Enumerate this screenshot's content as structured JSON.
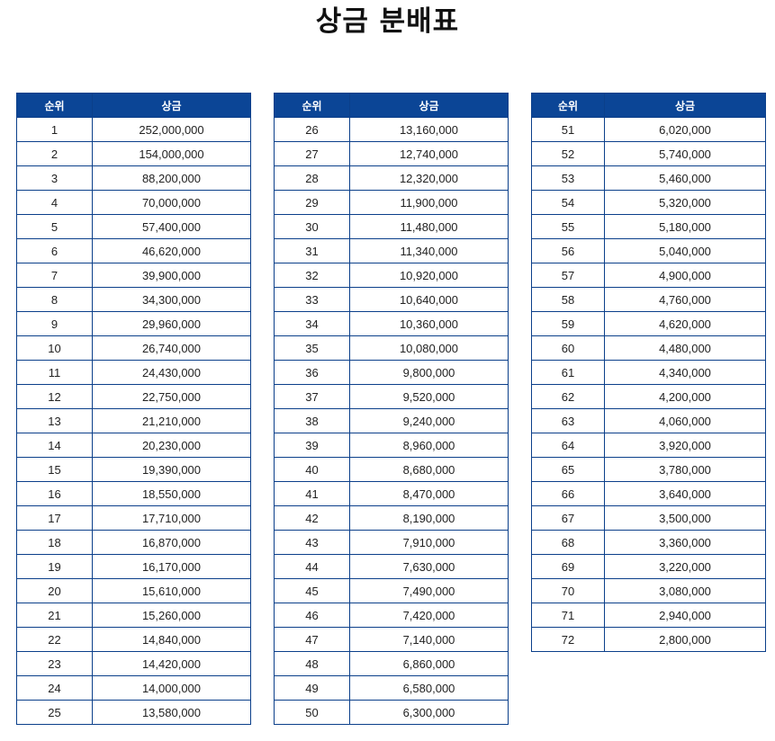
{
  "title": "상금 분배표",
  "columns": {
    "rank": "순위",
    "prize": "상금"
  },
  "tables": [
    {
      "rows": [
        {
          "rank": "1",
          "prize": "252,000,000"
        },
        {
          "rank": "2",
          "prize": "154,000,000"
        },
        {
          "rank": "3",
          "prize": "88,200,000"
        },
        {
          "rank": "4",
          "prize": "70,000,000"
        },
        {
          "rank": "5",
          "prize": "57,400,000"
        },
        {
          "rank": "6",
          "prize": "46,620,000"
        },
        {
          "rank": "7",
          "prize": "39,900,000"
        },
        {
          "rank": "8",
          "prize": "34,300,000"
        },
        {
          "rank": "9",
          "prize": "29,960,000"
        },
        {
          "rank": "10",
          "prize": "26,740,000"
        },
        {
          "rank": "11",
          "prize": "24,430,000"
        },
        {
          "rank": "12",
          "prize": "22,750,000"
        },
        {
          "rank": "13",
          "prize": "21,210,000"
        },
        {
          "rank": "14",
          "prize": "20,230,000"
        },
        {
          "rank": "15",
          "prize": "19,390,000"
        },
        {
          "rank": "16",
          "prize": "18,550,000"
        },
        {
          "rank": "17",
          "prize": "17,710,000"
        },
        {
          "rank": "18",
          "prize": "16,870,000"
        },
        {
          "rank": "19",
          "prize": "16,170,000"
        },
        {
          "rank": "20",
          "prize": "15,610,000"
        },
        {
          "rank": "21",
          "prize": "15,260,000"
        },
        {
          "rank": "22",
          "prize": "14,840,000"
        },
        {
          "rank": "23",
          "prize": "14,420,000"
        },
        {
          "rank": "24",
          "prize": "14,000,000"
        },
        {
          "rank": "25",
          "prize": "13,580,000"
        }
      ]
    },
    {
      "rows": [
        {
          "rank": "26",
          "prize": "13,160,000"
        },
        {
          "rank": "27",
          "prize": "12,740,000"
        },
        {
          "rank": "28",
          "prize": "12,320,000"
        },
        {
          "rank": "29",
          "prize": "11,900,000"
        },
        {
          "rank": "30",
          "prize": "11,480,000"
        },
        {
          "rank": "31",
          "prize": "11,340,000"
        },
        {
          "rank": "32",
          "prize": "10,920,000"
        },
        {
          "rank": "33",
          "prize": "10,640,000"
        },
        {
          "rank": "34",
          "prize": "10,360,000"
        },
        {
          "rank": "35",
          "prize": "10,080,000"
        },
        {
          "rank": "36",
          "prize": "9,800,000"
        },
        {
          "rank": "37",
          "prize": "9,520,000"
        },
        {
          "rank": "38",
          "prize": "9,240,000"
        },
        {
          "rank": "39",
          "prize": "8,960,000"
        },
        {
          "rank": "40",
          "prize": "8,680,000"
        },
        {
          "rank": "41",
          "prize": "8,470,000"
        },
        {
          "rank": "42",
          "prize": "8,190,000"
        },
        {
          "rank": "43",
          "prize": "7,910,000"
        },
        {
          "rank": "44",
          "prize": "7,630,000"
        },
        {
          "rank": "45",
          "prize": "7,490,000"
        },
        {
          "rank": "46",
          "prize": "7,420,000"
        },
        {
          "rank": "47",
          "prize": "7,140,000"
        },
        {
          "rank": "48",
          "prize": "6,860,000"
        },
        {
          "rank": "49",
          "prize": "6,580,000"
        },
        {
          "rank": "50",
          "prize": "6,300,000"
        }
      ]
    },
    {
      "rows": [
        {
          "rank": "51",
          "prize": "6,020,000"
        },
        {
          "rank": "52",
          "prize": "5,740,000"
        },
        {
          "rank": "53",
          "prize": "5,460,000"
        },
        {
          "rank": "54",
          "prize": "5,320,000"
        },
        {
          "rank": "55",
          "prize": "5,180,000"
        },
        {
          "rank": "56",
          "prize": "5,040,000"
        },
        {
          "rank": "57",
          "prize": "4,900,000"
        },
        {
          "rank": "58",
          "prize": "4,760,000"
        },
        {
          "rank": "59",
          "prize": "4,620,000"
        },
        {
          "rank": "60",
          "prize": "4,480,000"
        },
        {
          "rank": "61",
          "prize": "4,340,000"
        },
        {
          "rank": "62",
          "prize": "4,200,000"
        },
        {
          "rank": "63",
          "prize": "4,060,000"
        },
        {
          "rank": "64",
          "prize": "3,920,000"
        },
        {
          "rank": "65",
          "prize": "3,780,000"
        },
        {
          "rank": "66",
          "prize": "3,640,000"
        },
        {
          "rank": "67",
          "prize": "3,500,000"
        },
        {
          "rank": "68",
          "prize": "3,360,000"
        },
        {
          "rank": "69",
          "prize": "3,220,000"
        },
        {
          "rank": "70",
          "prize": "3,080,000"
        },
        {
          "rank": "71",
          "prize": "2,940,000"
        },
        {
          "rank": "72",
          "prize": "2,800,000"
        }
      ]
    }
  ],
  "colors": {
    "header_bg": "#0b4596",
    "border": "#0b3f8a",
    "header_text": "#ffffff"
  }
}
